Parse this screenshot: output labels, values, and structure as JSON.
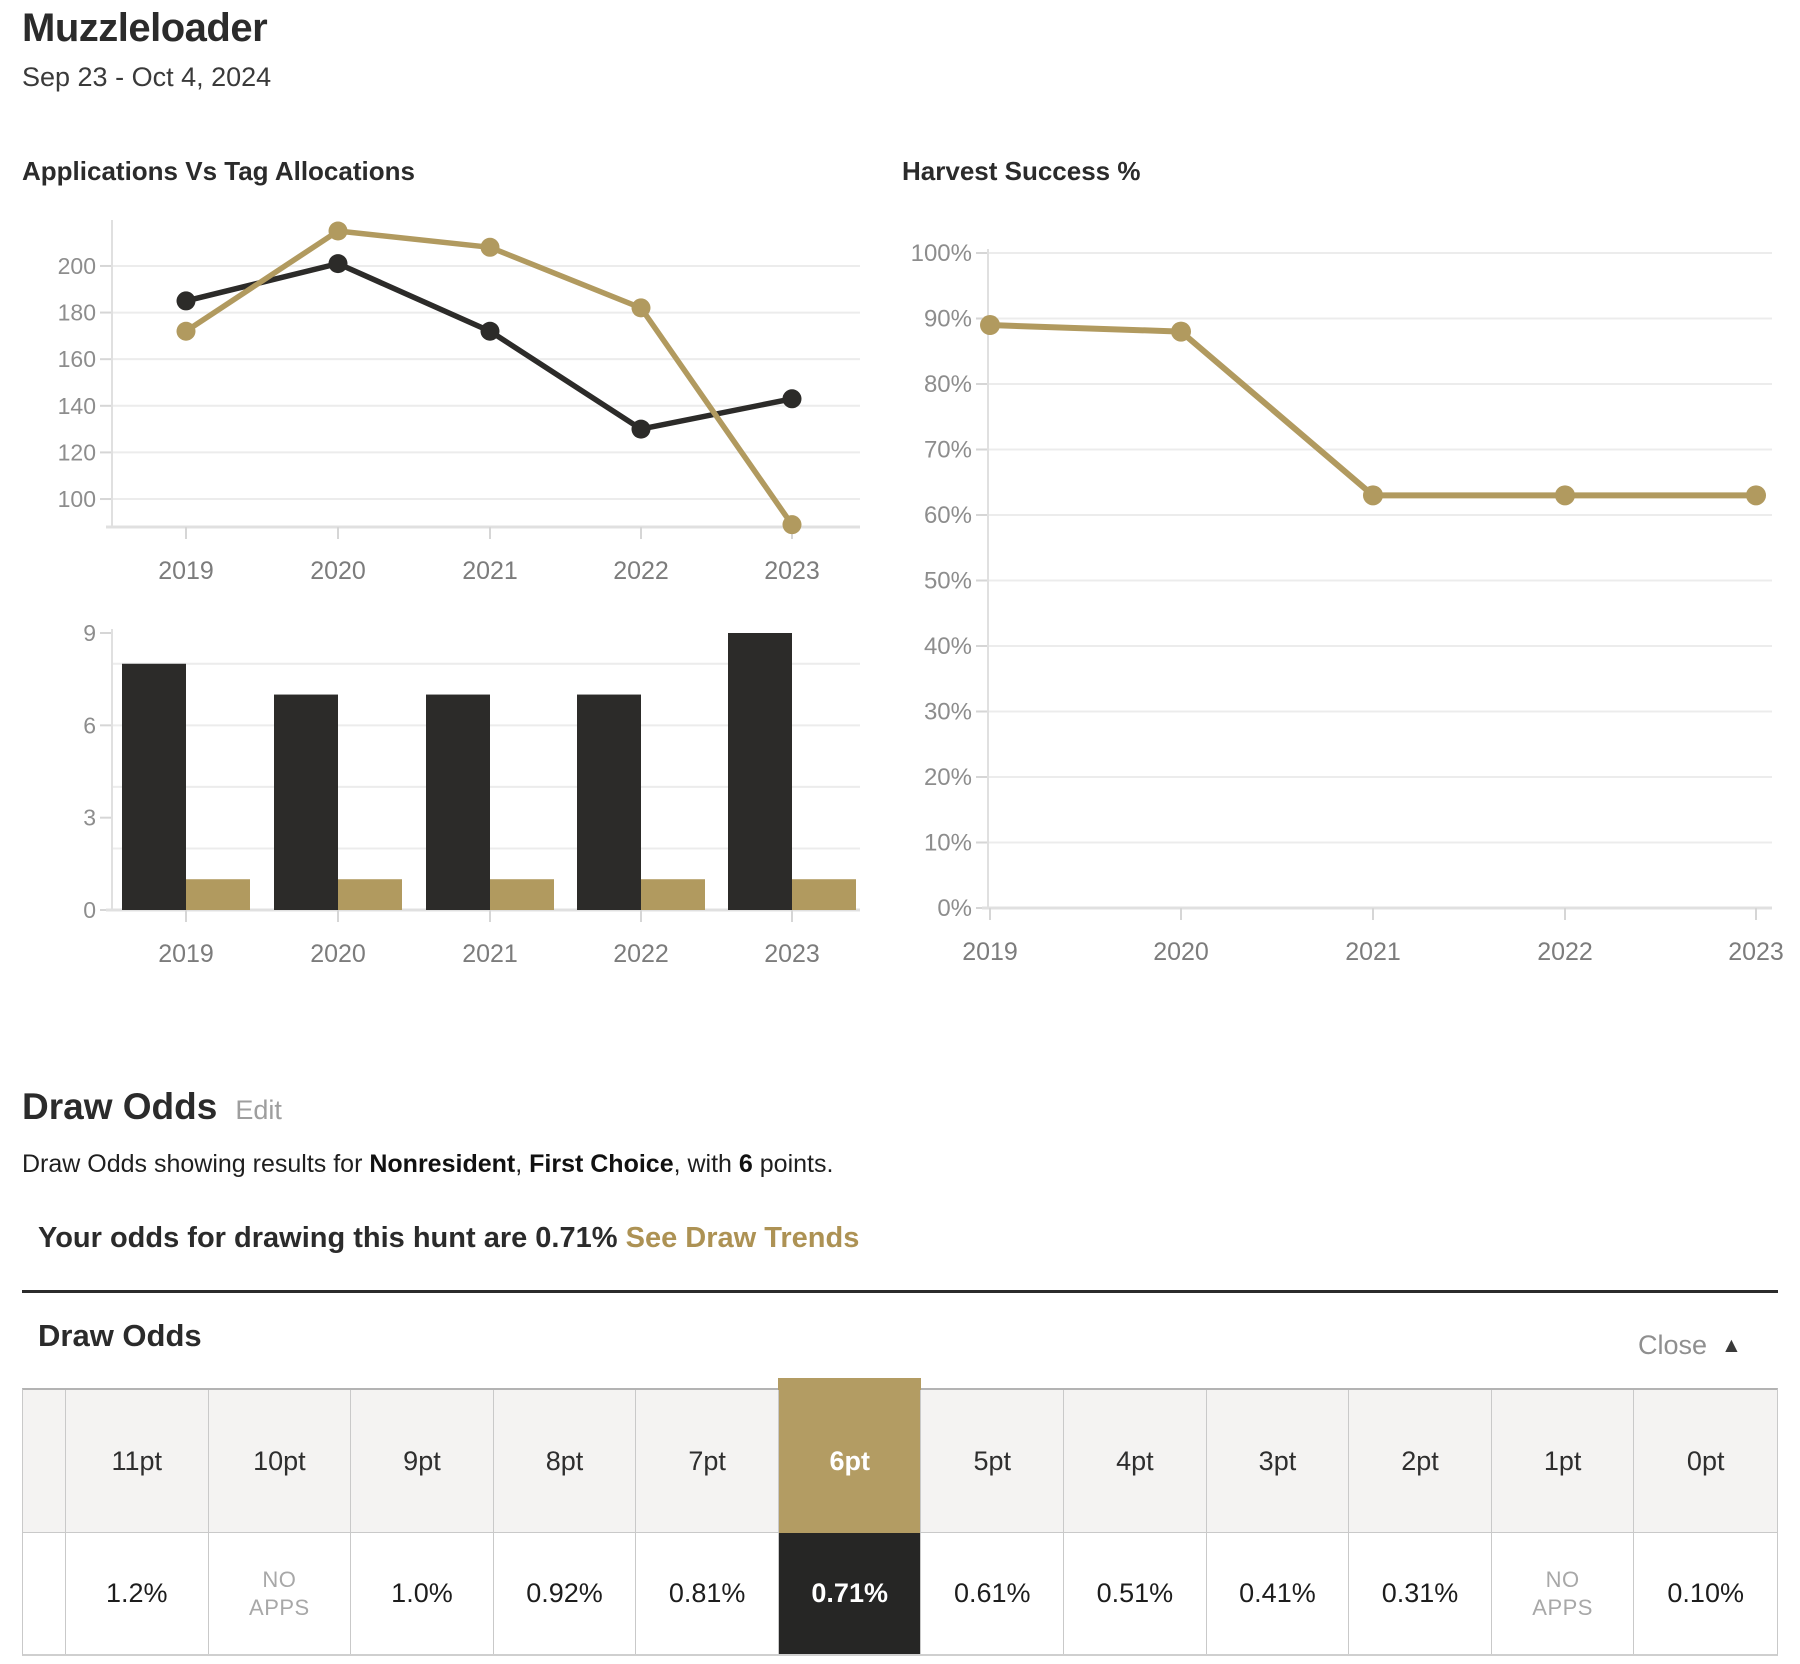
{
  "header": {
    "title": "Muzzleloader",
    "date_range": "Sep 23 - Oct 4, 2024"
  },
  "chart_data": [
    {
      "type": "line",
      "title": "Applications Vs Tag Allocations",
      "x": [
        "2019",
        "2020",
        "2021",
        "2022",
        "2023"
      ],
      "series": [
        {
          "name": "dark-series",
          "color_key": "dark",
          "values": [
            185,
            201,
            172,
            130,
            143
          ]
        },
        {
          "name": "gold-series",
          "color_key": "gold",
          "values": [
            172,
            215,
            208,
            182,
            89
          ]
        }
      ],
      "ylim": [
        88,
        218
      ],
      "yticks": [
        100,
        120,
        140,
        160,
        180,
        200
      ],
      "grid": true,
      "legend": false
    },
    {
      "type": "bar",
      "title": "",
      "x": [
        "2019",
        "2020",
        "2021",
        "2022",
        "2023"
      ],
      "series": [
        {
          "name": "dark-series",
          "color_key": "dark",
          "values": [
            8,
            7,
            7,
            7,
            9
          ]
        },
        {
          "name": "gold-series",
          "color_key": "gold",
          "values": [
            1,
            1,
            1,
            1,
            1
          ]
        }
      ],
      "ylim": [
        0,
        9
      ],
      "yticks": [
        0,
        3,
        6,
        9
      ],
      "gridlines": [
        2,
        4,
        6,
        8
      ],
      "grid": true,
      "legend": false
    },
    {
      "type": "line",
      "title": "Harvest Success %",
      "x": [
        "2019",
        "2020",
        "2021",
        "2022",
        "2023"
      ],
      "series": [
        {
          "name": "gold-series",
          "color_key": "gold",
          "values": [
            89,
            88,
            63,
            63,
            63
          ]
        }
      ],
      "ylim": [
        0,
        100
      ],
      "yticks": [
        0,
        10,
        20,
        30,
        40,
        50,
        60,
        70,
        80,
        90,
        100
      ],
      "ytick_suffix": "%",
      "grid": true,
      "legend": false
    }
  ],
  "draw_odds": {
    "heading": "Draw Odds",
    "edit_label": "Edit",
    "summary": {
      "p1": "Draw Odds showing results for ",
      "b1": "Nonresident",
      "p2": ", ",
      "b2": "First Choice",
      "p3": ", with ",
      "b3": "6",
      "p4": " points."
    },
    "odds_sentence": "Your odds for drawing this hunt are 0.71%",
    "trends_link": "See Draw Trends",
    "panel": {
      "title": "Draw Odds",
      "close_label": "Close",
      "close_icon": "up-triangle-icon",
      "columns": [
        "11pt",
        "10pt",
        "9pt",
        "8pt",
        "7pt",
        "6pt",
        "5pt",
        "4pt",
        "3pt",
        "2pt",
        "1pt",
        "0pt"
      ],
      "values": [
        "1.2%",
        "NO APPS",
        "1.0%",
        "0.92%",
        "0.81%",
        "0.71%",
        "0.61%",
        "0.51%",
        "0.41%",
        "0.31%",
        "NO APPS",
        "0.10%"
      ],
      "no_apps_label": "NO APPS",
      "highlight_index": 5,
      "clipped_column": {
        "header": "",
        "value": ""
      }
    }
  },
  "colors": {
    "gold": "#b19a5f",
    "dark": "#2c2b29",
    "cell_gold": "#b39c63",
    "cell_dark": "#262625",
    "gold_link": "#ad9254",
    "grid": "#ececec",
    "axis": "#e0e0e0",
    "tick": "#d6d6d6",
    "tick_label": "#8d8d8d",
    "year_label": "#7c7c7c"
  }
}
